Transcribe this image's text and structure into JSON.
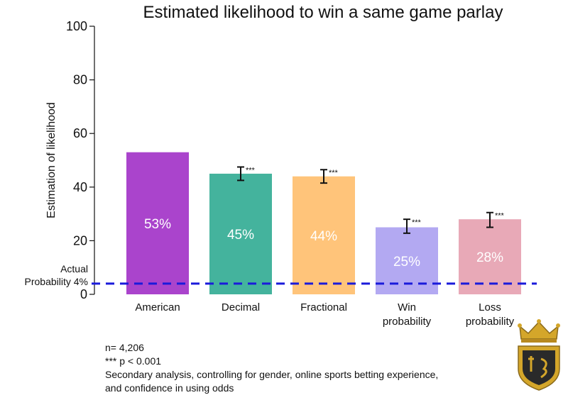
{
  "chart_data": {
    "type": "bar",
    "title": "Estimated likelihood to win a same game parlay",
    "ylabel": "Estimation of likelihood",
    "xlabel": "",
    "ylim": [
      0,
      100
    ],
    "yticks": [
      0,
      20,
      40,
      60,
      80,
      100
    ],
    "categories": [
      "American",
      "Decimal",
      "Fractional",
      "Win probability",
      "Loss probability"
    ],
    "category_lines": [
      [
        "American"
      ],
      [
        "Decimal"
      ],
      [
        "Fractional"
      ],
      [
        "Win",
        "probability"
      ],
      [
        "Loss",
        "probability"
      ]
    ],
    "values": [
      53,
      45,
      44,
      25,
      28
    ],
    "bar_labels": [
      "53%",
      "45%",
      "44%",
      "25%",
      "28%"
    ],
    "error_low": [
      null,
      42.5,
      41.5,
      22.8,
      25.0
    ],
    "error_high": [
      null,
      47.5,
      46.5,
      28.0,
      30.5
    ],
    "significance": [
      "",
      "***",
      "***",
      "***",
      "***"
    ],
    "colors": [
      "#aa44cc",
      "#44b39d",
      "#ffc47a",
      "#b3a9f2",
      "#e8a9b7"
    ],
    "reference_line": {
      "value": 4,
      "label_lines": [
        "Actual",
        "Probability 4%"
      ],
      "color": "#1a1adb",
      "style": "dashed"
    },
    "grid": false,
    "legend": "none"
  },
  "notes": [
    "n= 4,206",
    "*** p < 0.001",
    "Secondary analysis, controlling for gender, online sports betting experience,",
    "and confidence in using odds"
  ],
  "logo": {
    "icon": "crown-shield-logo",
    "colors": [
      "#d4a62a",
      "#8a6a1c",
      "#ffffff"
    ]
  }
}
